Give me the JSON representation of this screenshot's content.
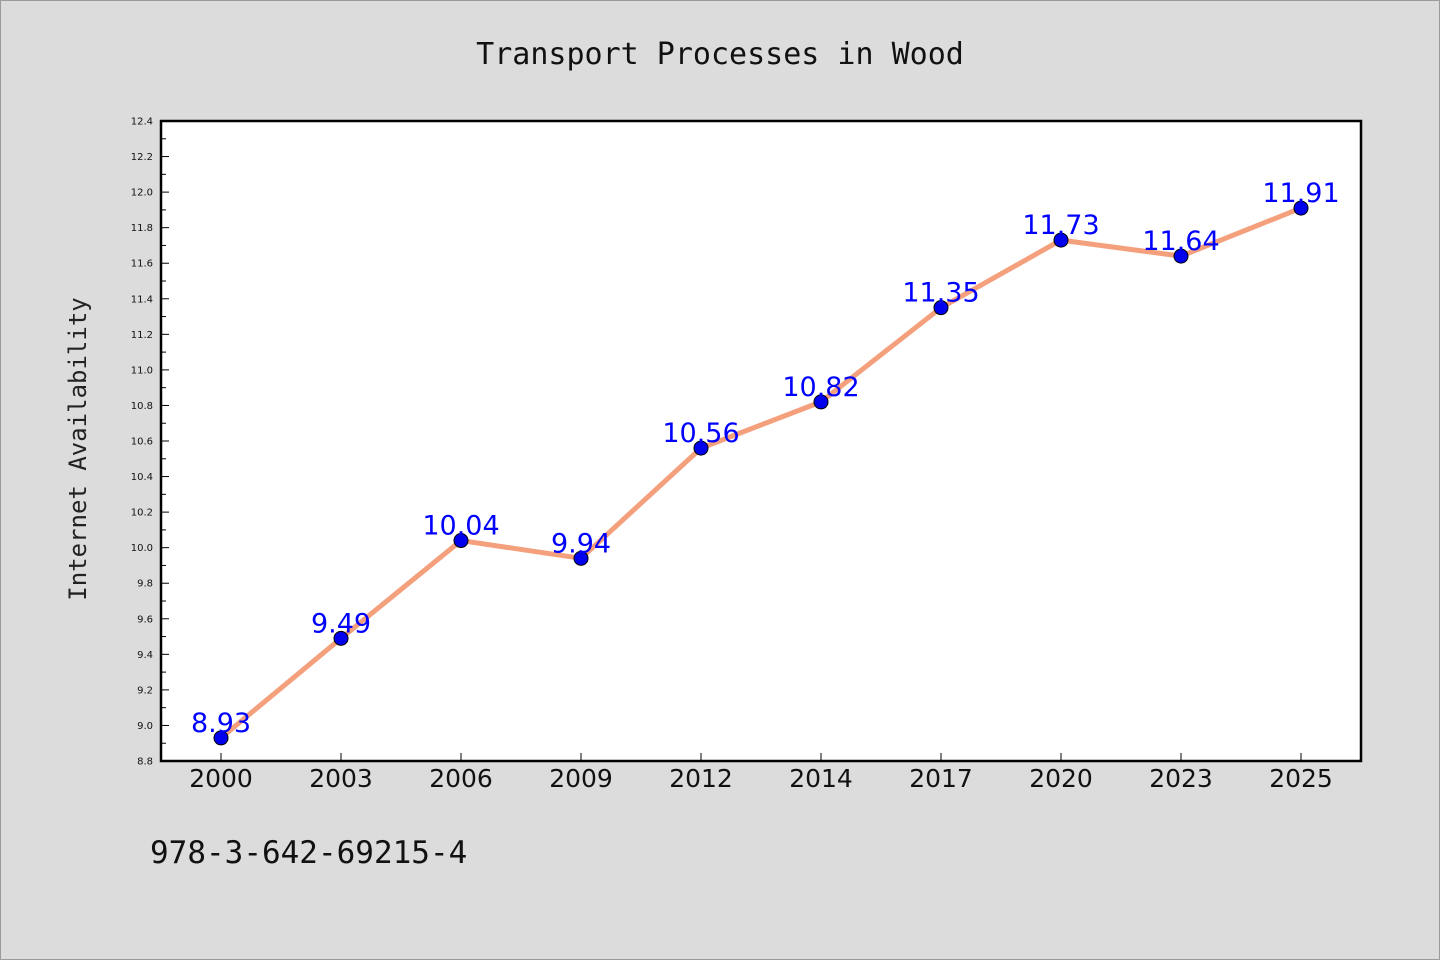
{
  "chart_data": {
    "type": "line",
    "title": "Transport Processes in Wood",
    "xlabel": "",
    "ylabel": "Internet Availability",
    "categories": [
      "2000",
      "2003",
      "2006",
      "2009",
      "2012",
      "2014",
      "2017",
      "2020",
      "2023",
      "2025"
    ],
    "series": [
      {
        "values": [
          8.93,
          9.49,
          10.04,
          9.94,
          10.56,
          10.82,
          11.35,
          11.73,
          11.64,
          11.91
        ],
        "line_color": "#f4a07c",
        "marker_color": "#0000ee",
        "label_color": "#0000ff"
      }
    ],
    "data_labels": [
      "8.93",
      "9.49",
      "10.04",
      "9.94",
      "10.56",
      "10.82",
      "11.35",
      "11.73",
      "11.64",
      "11.91"
    ],
    "ylim": [
      8.8,
      12.4
    ],
    "y_ticks": [
      "8.8",
      "9.0",
      "9.2",
      "9.4",
      "9.6",
      "9.8",
      "10.0",
      "10.2",
      "10.4",
      "10.6",
      "10.8",
      "11.0",
      "11.2",
      "11.4",
      "11.6",
      "11.8",
      "12.0",
      "12.2",
      "12.4"
    ],
    "grid": false,
    "legend": "none",
    "background_color": "#dcdcdc",
    "plot_background_color": "#ffffff"
  },
  "footer": {
    "code": "978-3-642-69215-4"
  }
}
